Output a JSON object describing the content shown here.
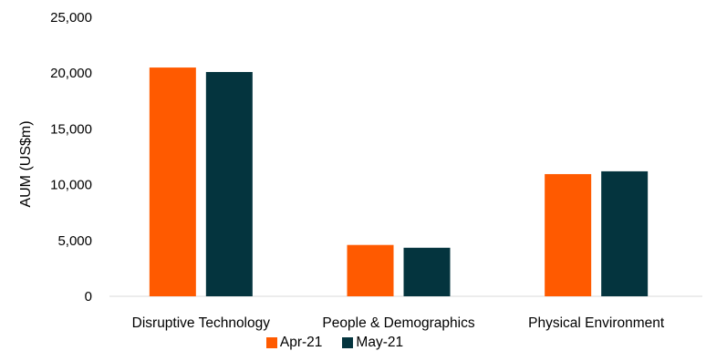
{
  "chart_data": {
    "type": "bar",
    "categories": [
      "Disruptive Technology",
      "People & Demographics",
      "Physical Environment"
    ],
    "series": [
      {
        "name": "Apr-21",
        "color": "#FF5A00",
        "values": [
          20500,
          4600,
          10950
        ]
      },
      {
        "name": "May-21",
        "color": "#04343E",
        "values": [
          20100,
          4350,
          11200
        ]
      }
    ],
    "title": "",
    "xlabel": "",
    "ylabel": "AUM (US$m)",
    "ylim": [
      0,
      25000
    ],
    "yticks": [
      "0",
      "5,000",
      "10,000",
      "15,000",
      "20,000",
      "25,000"
    ],
    "ytick_values": [
      0,
      5000,
      10000,
      15000,
      20000,
      25000
    ],
    "grid": false,
    "legend": "bottom"
  }
}
